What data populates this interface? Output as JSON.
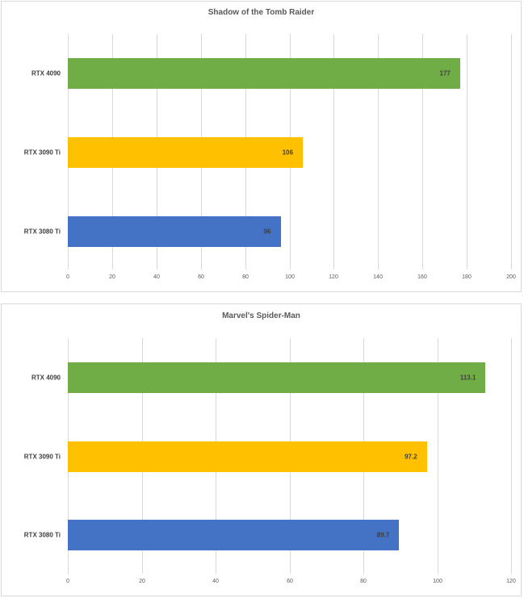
{
  "chart_data": [
    {
      "type": "bar",
      "orientation": "horizontal",
      "title": "Shadow of the Tomb Raider",
      "categories": [
        "RTX 4090",
        "RTX 3090 Ti",
        "RTX 3080 Ti"
      ],
      "values": [
        177,
        106,
        96
      ],
      "value_labels": [
        "177",
        "106",
        "96"
      ],
      "colors": [
        "#70ad47",
        "#ffc000",
        "#4472c4"
      ],
      "xlabel": "",
      "ylabel": "",
      "xlim": [
        0,
        200
      ],
      "ticks": [
        "0",
        "20",
        "40",
        "60",
        "80",
        "100",
        "120",
        "140",
        "160",
        "180",
        "200"
      ],
      "grid": true,
      "legend": "none"
    },
    {
      "type": "bar",
      "orientation": "horizontal",
      "title": "Marvel's Spider-Man",
      "categories": [
        "RTX 4090",
        "RTX 3090 Ti",
        "RTX 3080 Ti"
      ],
      "values": [
        113.1,
        97.2,
        89.7
      ],
      "value_labels": [
        "113.1",
        "97.2",
        "89.7"
      ],
      "colors": [
        "#70ad47",
        "#ffc000",
        "#4472c4"
      ],
      "xlabel": "",
      "ylabel": "",
      "xlim": [
        0,
        120
      ],
      "ticks": [
        "0",
        "20",
        "40",
        "60",
        "80",
        "100",
        "120"
      ],
      "grid": true,
      "legend": "none"
    }
  ]
}
